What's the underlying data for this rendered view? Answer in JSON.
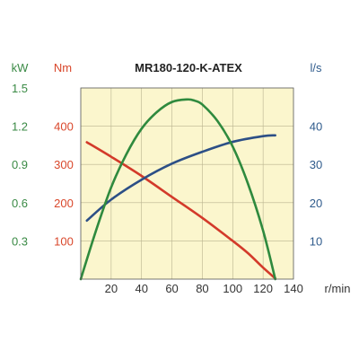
{
  "chart_data": {
    "type": "line",
    "title": "MR180-120-K-ATEX",
    "xlabel": "r/min",
    "xlim": [
      0,
      140
    ],
    "x_ticks": [
      20,
      40,
      60,
      80,
      100,
      120,
      140
    ],
    "grid": true,
    "axes": {
      "power": {
        "unit": "kW",
        "range": [
          0,
          1.5
        ],
        "ticks": [
          "0.3",
          "0.6",
          "0.9",
          "1.2",
          "1.5"
        ],
        "color": "#3a8a45"
      },
      "torque": {
        "unit": "Nm",
        "range": [
          0,
          500
        ],
        "ticks": [
          "100",
          "200",
          "300",
          "400"
        ],
        "color": "#d9472b"
      },
      "flow": {
        "unit": "l/s",
        "range": [
          0,
          50
        ],
        "ticks": [
          "10",
          "20",
          "30",
          "40"
        ],
        "color": "#2f5b8c"
      }
    },
    "series": [
      {
        "axis": "torque",
        "color": "#d33a2a",
        "x": [
          4,
          20,
          40,
          60,
          80,
          100,
          110,
          120,
          128
        ],
        "y": [
          358,
          320,
          270,
          215,
          160,
          100,
          68,
          30,
          2
        ]
      },
      {
        "axis": "power",
        "color": "#2f8a3e",
        "x": [
          0,
          10,
          20,
          30,
          40,
          50,
          60,
          70,
          75,
          80,
          90,
          100,
          110,
          120,
          128
        ],
        "y": [
          0,
          0.38,
          0.72,
          0.98,
          1.18,
          1.31,
          1.39,
          1.41,
          1.4,
          1.37,
          1.24,
          1.04,
          0.75,
          0.38,
          0
        ]
      },
      {
        "axis": "flow",
        "color": "#2c4f86",
        "x": [
          4,
          20,
          40,
          60,
          80,
          100,
          120,
          128
        ],
        "y": [
          15.3,
          20.8,
          26.0,
          30.2,
          33.3,
          35.9,
          37.4,
          37.6
        ]
      }
    ]
  }
}
